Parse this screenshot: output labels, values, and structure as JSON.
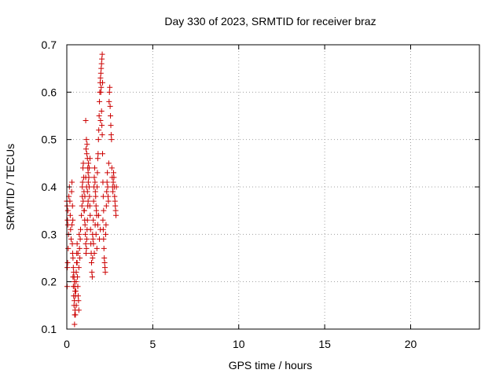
{
  "chart_data": {
    "type": "scatter",
    "title": "Day 330 of 2023, SRMTID for receiver braz",
    "xlabel": "GPS time / hours",
    "ylabel": "SRMTID / TECUs",
    "xlim": [
      0,
      24
    ],
    "ylim": [
      0.1,
      0.7
    ],
    "xticks": [
      0,
      5,
      10,
      15,
      20
    ],
    "xtick_labels": [
      "0",
      "5",
      "10",
      "15",
      "20"
    ],
    "yticks": [
      0.1,
      0.2,
      0.3,
      0.4,
      0.5,
      0.6,
      0.7
    ],
    "ytick_labels": [
      "0.1",
      "0.2",
      "0.3",
      "0.4",
      "0.5",
      "0.6",
      "0.7"
    ],
    "grid": true,
    "marker": "+",
    "color": "#cc0000",
    "series": [
      {
        "name": "SRMTID",
        "points": [
          [
            0.0,
            0.37
          ],
          [
            0.02,
            0.36
          ],
          [
            0.04,
            0.33
          ],
          [
            0.06,
            0.35
          ],
          [
            0.08,
            0.27
          ],
          [
            0.05,
            0.24
          ],
          [
            0.03,
            0.23
          ],
          [
            0.02,
            0.19
          ],
          [
            0.06,
            0.32
          ],
          [
            0.1,
            0.3
          ],
          [
            0.12,
            0.38
          ],
          [
            0.15,
            0.4
          ],
          [
            0.18,
            0.37
          ],
          [
            0.2,
            0.34
          ],
          [
            0.22,
            0.31
          ],
          [
            0.25,
            0.29
          ],
          [
            0.28,
            0.39
          ],
          [
            0.3,
            0.41
          ],
          [
            0.33,
            0.36
          ],
          [
            0.35,
            0.33
          ],
          [
            0.36,
            0.21
          ],
          [
            0.38,
            0.19
          ],
          [
            0.4,
            0.17
          ],
          [
            0.42,
            0.15
          ],
          [
            0.44,
            0.16
          ],
          [
            0.45,
            0.11
          ],
          [
            0.46,
            0.13
          ],
          [
            0.48,
            0.14
          ],
          [
            0.5,
            0.17
          ],
          [
            0.52,
            0.18
          ],
          [
            0.54,
            0.2
          ],
          [
            0.55,
            0.22
          ],
          [
            0.57,
            0.24
          ],
          [
            0.58,
            0.26
          ],
          [
            0.6,
            0.28
          ],
          [
            0.62,
            0.21
          ],
          [
            0.64,
            0.19
          ],
          [
            0.66,
            0.17
          ],
          [
            0.68,
            0.16
          ],
          [
            0.7,
            0.23
          ],
          [
            0.72,
            0.3
          ],
          [
            0.74,
            0.27
          ],
          [
            0.76,
            0.25
          ],
          [
            0.78,
            0.29
          ],
          [
            0.8,
            0.31
          ],
          [
            0.7,
            0.14
          ],
          [
            0.55,
            0.15
          ],
          [
            0.5,
            0.13
          ],
          [
            0.6,
            0.24
          ],
          [
            0.65,
            0.26
          ],
          [
            0.85,
            0.34
          ],
          [
            0.88,
            0.36
          ],
          [
            0.9,
            0.38
          ],
          [
            0.92,
            0.41
          ],
          [
            0.94,
            0.44
          ],
          [
            0.96,
            0.45
          ],
          [
            0.98,
            0.42
          ],
          [
            1.0,
            0.39
          ],
          [
            1.02,
            0.35
          ],
          [
            1.04,
            0.33
          ],
          [
            1.06,
            0.32
          ],
          [
            1.08,
            0.3
          ],
          [
            1.1,
            0.28
          ],
          [
            1.12,
            0.26
          ],
          [
            1.14,
            0.27
          ],
          [
            1.16,
            0.29
          ],
          [
            1.18,
            0.31
          ],
          [
            1.2,
            0.33
          ],
          [
            1.22,
            0.36
          ],
          [
            1.24,
            0.37
          ],
          [
            1.1,
            0.54
          ],
          [
            1.12,
            0.48
          ],
          [
            1.14,
            0.5
          ],
          [
            1.16,
            0.47
          ],
          [
            1.18,
            0.49
          ],
          [
            1.2,
            0.46
          ],
          [
            1.22,
            0.44
          ],
          [
            1.24,
            0.43
          ],
          [
            1.26,
            0.45
          ],
          [
            1.28,
            0.42
          ],
          [
            1.3,
            0.4
          ],
          [
            1.32,
            0.38
          ],
          [
            1.34,
            0.36
          ],
          [
            1.36,
            0.34
          ],
          [
            1.38,
            0.31
          ],
          [
            1.4,
            0.28
          ],
          [
            1.42,
            0.26
          ],
          [
            1.44,
            0.24
          ],
          [
            1.46,
            0.22
          ],
          [
            1.48,
            0.21
          ],
          [
            1.5,
            0.25
          ],
          [
            1.52,
            0.29
          ],
          [
            1.54,
            0.33
          ],
          [
            1.56,
            0.37
          ],
          [
            1.58,
            0.4
          ],
          [
            1.6,
            0.42
          ],
          [
            1.62,
            0.44
          ],
          [
            1.64,
            0.41
          ],
          [
            1.66,
            0.39
          ],
          [
            1.68,
            0.38
          ],
          [
            1.7,
            0.36
          ],
          [
            1.72,
            0.35
          ],
          [
            1.74,
            0.34
          ],
          [
            1.76,
            0.4
          ],
          [
            1.78,
            0.43
          ],
          [
            1.8,
            0.46
          ],
          [
            1.82,
            0.47
          ],
          [
            1.84,
            0.5
          ],
          [
            1.86,
            0.52
          ],
          [
            1.88,
            0.55
          ],
          [
            1.9,
            0.58
          ],
          [
            1.92,
            0.6
          ],
          [
            1.94,
            0.62
          ],
          [
            1.96,
            0.63
          ],
          [
            1.98,
            0.64
          ],
          [
            2.0,
            0.65
          ],
          [
            2.02,
            0.66
          ],
          [
            2.04,
            0.67
          ],
          [
            2.06,
            0.68
          ],
          [
            2.08,
            0.62
          ],
          [
            2.0,
            0.61
          ],
          [
            1.98,
            0.6
          ],
          [
            1.96,
            0.54
          ],
          [
            2.02,
            0.56
          ],
          [
            2.04,
            0.53
          ],
          [
            2.06,
            0.51
          ],
          [
            2.08,
            0.47
          ],
          [
            2.1,
            0.41
          ],
          [
            2.12,
            0.38
          ],
          [
            2.14,
            0.35
          ],
          [
            2.1,
            0.33
          ],
          [
            2.12,
            0.31
          ],
          [
            2.14,
            0.29
          ],
          [
            2.16,
            0.27
          ],
          [
            2.18,
            0.25
          ],
          [
            2.2,
            0.24
          ],
          [
            2.22,
            0.23
          ],
          [
            2.24,
            0.22
          ],
          [
            2.26,
            0.3
          ],
          [
            2.28,
            0.32
          ],
          [
            2.3,
            0.36
          ],
          [
            2.32,
            0.39
          ],
          [
            2.34,
            0.41
          ],
          [
            2.36,
            0.43
          ],
          [
            2.38,
            0.4
          ],
          [
            2.4,
            0.38
          ],
          [
            2.42,
            0.37
          ],
          [
            2.44,
            0.45
          ],
          [
            2.46,
            0.58
          ],
          [
            2.48,
            0.6
          ],
          [
            2.5,
            0.61
          ],
          [
            2.52,
            0.57
          ],
          [
            2.54,
            0.55
          ],
          [
            2.56,
            0.53
          ],
          [
            2.58,
            0.51
          ],
          [
            2.6,
            0.5
          ],
          [
            2.62,
            0.44
          ],
          [
            2.64,
            0.42
          ],
          [
            2.66,
            0.4
          ],
          [
            2.68,
            0.39
          ],
          [
            2.7,
            0.41
          ],
          [
            2.72,
            0.43
          ],
          [
            2.74,
            0.42
          ],
          [
            2.76,
            0.4
          ],
          [
            2.78,
            0.38
          ],
          [
            2.8,
            0.37
          ],
          [
            2.82,
            0.36
          ],
          [
            2.84,
            0.35
          ],
          [
            2.86,
            0.34
          ],
          [
            2.88,
            0.4
          ],
          [
            1.5,
            0.3
          ],
          [
            1.55,
            0.28
          ],
          [
            1.6,
            0.26
          ],
          [
            1.65,
            0.32
          ],
          [
            1.7,
            0.3
          ],
          [
            1.75,
            0.27
          ],
          [
            1.8,
            0.32
          ],
          [
            1.85,
            0.34
          ],
          [
            1.9,
            0.29
          ],
          [
            1.95,
            0.31
          ],
          [
            0.9,
            0.4
          ],
          [
            0.95,
            0.37
          ],
          [
            1.0,
            0.35
          ],
          [
            1.05,
            0.38
          ],
          [
            1.1,
            0.42
          ],
          [
            1.15,
            0.4
          ],
          [
            1.2,
            0.39
          ],
          [
            1.25,
            0.41
          ],
          [
            1.3,
            0.44
          ],
          [
            1.35,
            0.46
          ],
          [
            0.3,
            0.32
          ],
          [
            0.32,
            0.28
          ],
          [
            0.34,
            0.26
          ],
          [
            0.36,
            0.25
          ],
          [
            0.38,
            0.23
          ],
          [
            0.4,
            0.22
          ],
          [
            0.42,
            0.21
          ],
          [
            0.44,
            0.2
          ],
          [
            0.46,
            0.19
          ],
          [
            0.48,
            0.18
          ]
        ]
      }
    ]
  }
}
